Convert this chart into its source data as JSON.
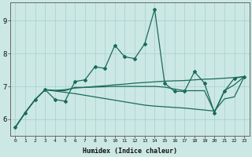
{
  "xlabel": "Humidex (Indice chaleur)",
  "xlim": [
    -0.5,
    23.5
  ],
  "ylim": [
    5.5,
    9.55
  ],
  "xticks": [
    0,
    1,
    2,
    3,
    4,
    5,
    6,
    7,
    8,
    9,
    10,
    11,
    12,
    13,
    14,
    15,
    16,
    17,
    18,
    19,
    20,
    21,
    22,
    23
  ],
  "yticks": [
    6,
    7,
    8,
    9
  ],
  "bg_color": "#cce8e4",
  "grid_color": "#aad4ce",
  "line_color": "#1a6b5a",
  "line0": [
    5.75,
    6.2,
    6.6,
    6.9,
    6.6,
    6.55,
    7.15,
    7.2,
    7.6,
    7.55,
    8.25,
    7.9,
    7.85,
    8.3,
    9.35,
    7.1,
    6.85,
    6.85,
    7.45,
    7.1,
    6.2,
    6.85,
    7.25,
    7.3
  ],
  "line1": [
    5.75,
    6.2,
    6.6,
    6.9,
    6.88,
    6.9,
    6.95,
    6.97,
    7.0,
    7.02,
    7.05,
    7.07,
    7.1,
    7.12,
    7.14,
    7.16,
    7.17,
    7.18,
    7.2,
    7.22,
    7.23,
    7.25,
    7.27,
    7.3
  ],
  "line2": [
    5.75,
    6.2,
    6.6,
    6.9,
    6.86,
    6.82,
    6.78,
    6.73,
    6.68,
    6.63,
    6.58,
    6.53,
    6.48,
    6.43,
    6.4,
    6.38,
    6.36,
    6.34,
    6.31,
    6.28,
    6.25,
    6.62,
    6.68,
    7.3
  ],
  "line3": [
    5.75,
    6.2,
    6.6,
    6.9,
    6.87,
    6.87,
    6.97,
    6.97,
    6.98,
    6.99,
    7.0,
    7.0,
    7.0,
    7.0,
    7.0,
    6.98,
    6.92,
    6.87,
    6.87,
    6.87,
    6.22,
    6.87,
    7.05,
    7.3
  ]
}
